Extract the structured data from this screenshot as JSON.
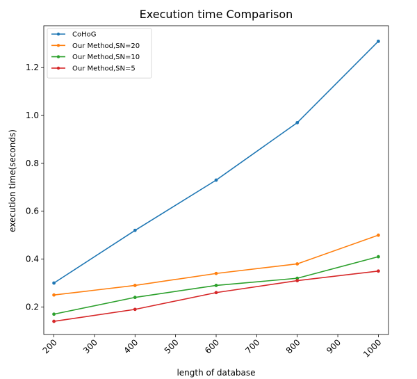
{
  "chart_data": {
    "type": "line",
    "title": "Execution time Comparison",
    "xlabel": "length of database",
    "ylabel": "execution time(seconds)",
    "x": [
      200,
      400,
      600,
      800,
      1000
    ],
    "xlim": [
      175,
      1025
    ],
    "ylim": [
      0.085,
      1.375
    ],
    "xticks": [
      200,
      300,
      400,
      500,
      600,
      700,
      800,
      900,
      1000
    ],
    "yticks": [
      0.2,
      0.4,
      0.6,
      0.8,
      1.0,
      1.2
    ],
    "ytick_labels": [
      "0.2",
      "0.4",
      "0.6",
      "0.8",
      "1.0",
      "1.2"
    ],
    "grid": false,
    "legend_position": "top-left",
    "series": [
      {
        "name": "CoHoG",
        "color": "#1f77b4",
        "values": [
          0.3,
          0.52,
          0.73,
          0.97,
          1.31
        ]
      },
      {
        "name": "Our Method,SN=20",
        "color": "#ff7f0e",
        "values": [
          0.25,
          0.29,
          0.34,
          0.38,
          0.5
        ]
      },
      {
        "name": "Our Method,SN=10",
        "color": "#2ca02c",
        "values": [
          0.17,
          0.24,
          0.29,
          0.32,
          0.41
        ]
      },
      {
        "name": "Our Method,SN=5",
        "color": "#d62728",
        "values": [
          0.14,
          0.19,
          0.26,
          0.31,
          0.35
        ]
      }
    ]
  }
}
